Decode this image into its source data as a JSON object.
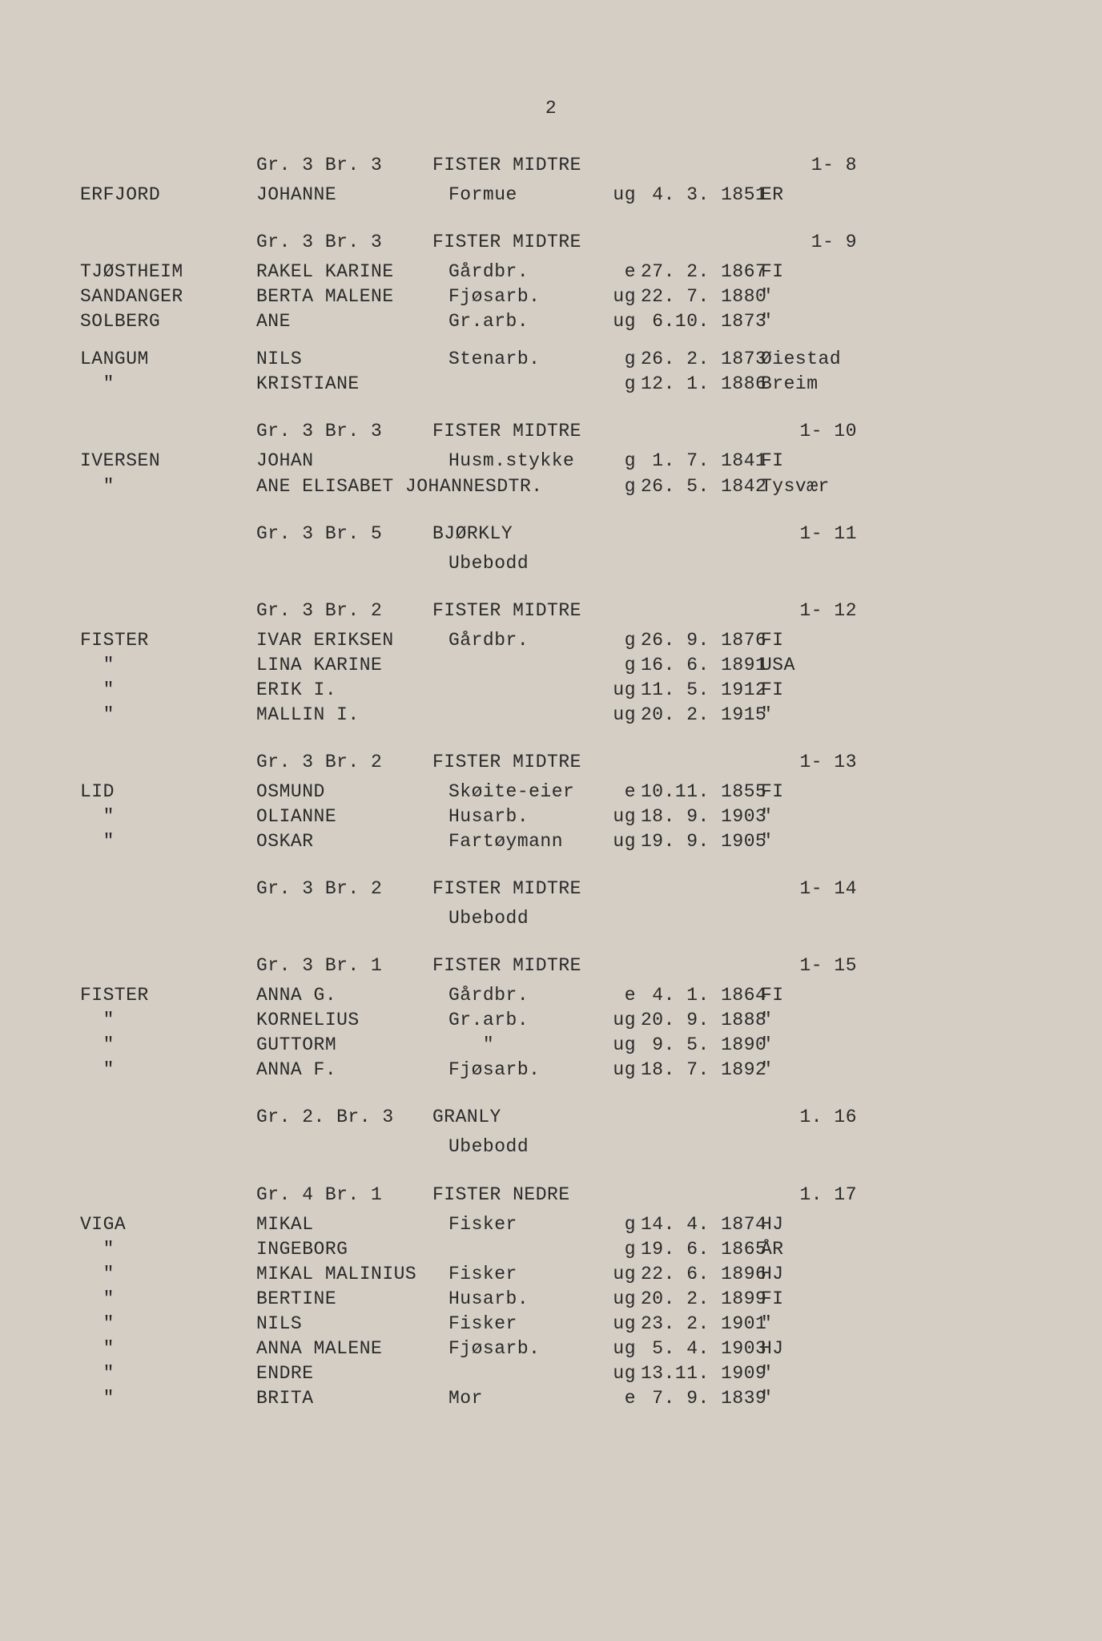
{
  "page_number": "2",
  "background_color": "#d4cec4",
  "text_color": "#2a2a2a",
  "font_family": "Courier New",
  "font_size_pt": 17,
  "sections": [
    {
      "header": {
        "grbr": "Gr. 3 Br. 3",
        "place": "FISTER MIDTRE",
        "ref": "1-  8"
      },
      "rows": [
        {
          "surname": "ERFJORD",
          "given": "JOHANNE",
          "occupation": "Formue",
          "status": "ug",
          "date": " 4. 3. 1851",
          "place": "ER"
        }
      ]
    },
    {
      "header": {
        "grbr": "Gr. 3 Br. 3",
        "place": "FISTER MIDTRE",
        "ref": "1-  9"
      },
      "rows": [
        {
          "surname": "TJØSTHEIM",
          "given": "RAKEL KARINE",
          "occupation": "Gårdbr.",
          "status": "e",
          "date": "27. 2. 1867",
          "place": "FI"
        },
        {
          "surname": "SANDANGER",
          "given": "BERTA MALENE",
          "occupation": "Fjøsarb.",
          "status": "ug",
          "date": "22. 7. 1880",
          "place": "\""
        },
        {
          "surname": "SOLBERG",
          "given": "ANE",
          "occupation": "Gr.arb.",
          "status": "ug",
          "date": " 6.10. 1873",
          "place": "\""
        }
      ],
      "extra_rows": [
        {
          "surname": "LANGUM",
          "given": "NILS",
          "occupation": "Stenarb.",
          "status": "g",
          "date": "26. 2. 1873",
          "place": "Øiestad"
        },
        {
          "surname": "  \"",
          "given": "KRISTIANE",
          "occupation": "",
          "status": "g",
          "date": "12. 1. 1886",
          "place": "Breim"
        }
      ]
    },
    {
      "header": {
        "grbr": "Gr. 3 Br. 3",
        "place": "FISTER MIDTRE",
        "ref": "1- 10"
      },
      "rows": [
        {
          "surname": "IVERSEN",
          "given": "JOHAN",
          "occupation": "Husm.stykke",
          "status": "g",
          "date": " 1. 7. 1841",
          "place": "FI"
        },
        {
          "surname": "  \"",
          "given": "ANE ELISABET JOHANNESDTR.",
          "occupation": "",
          "status": "g",
          "date": "26. 5. 1842",
          "place": "Tysvær"
        }
      ]
    },
    {
      "header": {
        "grbr": "Gr. 3 Br. 5",
        "place": "BJØRKLY",
        "ref": "1- 11"
      },
      "ubebodd": "Ubebodd"
    },
    {
      "header": {
        "grbr": "Gr. 3 Br. 2",
        "place": "FISTER MIDTRE",
        "ref": "1- 12"
      },
      "rows": [
        {
          "surname": "FISTER",
          "given": "IVAR ERIKSEN",
          "occupation": "Gårdbr.",
          "status": "g",
          "date": "26. 9. 1876",
          "place": "FI"
        },
        {
          "surname": "  \"",
          "given": "LINA KARINE",
          "occupation": "",
          "status": "g",
          "date": "16. 6. 1891",
          "place": "USA"
        },
        {
          "surname": "  \"",
          "given": "ERIK I.",
          "occupation": "",
          "status": "ug",
          "date": "11. 5. 1912",
          "place": "FI"
        },
        {
          "surname": "  \"",
          "given": "MALLIN I.",
          "occupation": "",
          "status": "ug",
          "date": "20. 2. 1915",
          "place": "\""
        }
      ]
    },
    {
      "header": {
        "grbr": "Gr. 3 Br. 2",
        "place": "FISTER MIDTRE",
        "ref": "1- 13"
      },
      "rows": [
        {
          "surname": "LID",
          "given": "OSMUND",
          "occupation": "Skøite-eier",
          "status": "e",
          "date": "10.11. 1855",
          "place": "FI"
        },
        {
          "surname": "  \"",
          "given": "OLIANNE",
          "occupation": "Husarb.",
          "status": "ug",
          "date": "18. 9. 1903",
          "place": "\""
        },
        {
          "surname": "  \"",
          "given": "OSKAR",
          "occupation": "Fartøymann",
          "status": "ug",
          "date": "19. 9. 1905",
          "place": "\""
        }
      ]
    },
    {
      "header": {
        "grbr": "Gr. 3 Br. 2",
        "place": "FISTER MIDTRE",
        "ref": "1- 14"
      },
      "ubebodd": "Ubebodd"
    },
    {
      "header": {
        "grbr": "Gr. 3 Br. 1",
        "place": "FISTER MIDTRE",
        "ref": "1- 15"
      },
      "rows": [
        {
          "surname": "FISTER",
          "given": "ANNA G.",
          "occupation": "Gårdbr.",
          "status": "e",
          "date": " 4. 1. 1864",
          "place": "FI"
        },
        {
          "surname": "  \"",
          "given": "KORNELIUS",
          "occupation": "Gr.arb.",
          "status": "ug",
          "date": "20. 9. 1888",
          "place": "\""
        },
        {
          "surname": "  \"",
          "given": "GUTTORM",
          "occupation": "   \"",
          "status": "ug",
          "date": " 9. 5. 1890",
          "place": "\""
        },
        {
          "surname": "  \"",
          "given": "ANNA F.",
          "occupation": "Fjøsarb.",
          "status": "ug",
          "date": "18. 7. 1892",
          "place": "\""
        }
      ]
    },
    {
      "header": {
        "grbr": "Gr. 2. Br. 3",
        "place": "GRANLY",
        "ref": "1. 16"
      },
      "ubebodd": "Ubebodd"
    },
    {
      "header": {
        "grbr": "Gr. 4 Br. 1",
        "place": "FISTER NEDRE",
        "ref": "1. 17"
      },
      "rows": [
        {
          "surname": "VIGA",
          "given": "MIKAL",
          "occupation": "Fisker",
          "status": "g",
          "date": "14. 4. 1874",
          "place": "HJ"
        },
        {
          "surname": "  \"",
          "given": "INGEBORG",
          "occupation": "",
          "status": "g",
          "date": "19. 6. 1865",
          "place": "ÅR"
        },
        {
          "surname": "  \"",
          "given": "MIKAL MALINIUS",
          "occupation": "Fisker",
          "status": "ug",
          "date": "22. 6. 1896",
          "place": "HJ"
        },
        {
          "surname": "  \"",
          "given": "BERTINE",
          "occupation": "Husarb.",
          "status": "ug",
          "date": "20. 2. 1899",
          "place": "FI"
        },
        {
          "surname": "  \"",
          "given": "NILS",
          "occupation": "Fisker",
          "status": "ug",
          "date": "23. 2. 1901",
          "place": "\""
        },
        {
          "surname": "  \"",
          "given": "ANNA MALENE",
          "occupation": "Fjøsarb.",
          "status": "ug",
          "date": " 5. 4. 1903",
          "place": "HJ"
        },
        {
          "surname": "  \"",
          "given": "ENDRE",
          "occupation": "",
          "status": "ug",
          "date": "13.11. 1909",
          "place": "\""
        },
        {
          "surname": "  \"",
          "given": "BRITA",
          "occupation": "Mor",
          "status": "e",
          "date": " 7. 9. 1839",
          "place": "\""
        }
      ]
    }
  ]
}
